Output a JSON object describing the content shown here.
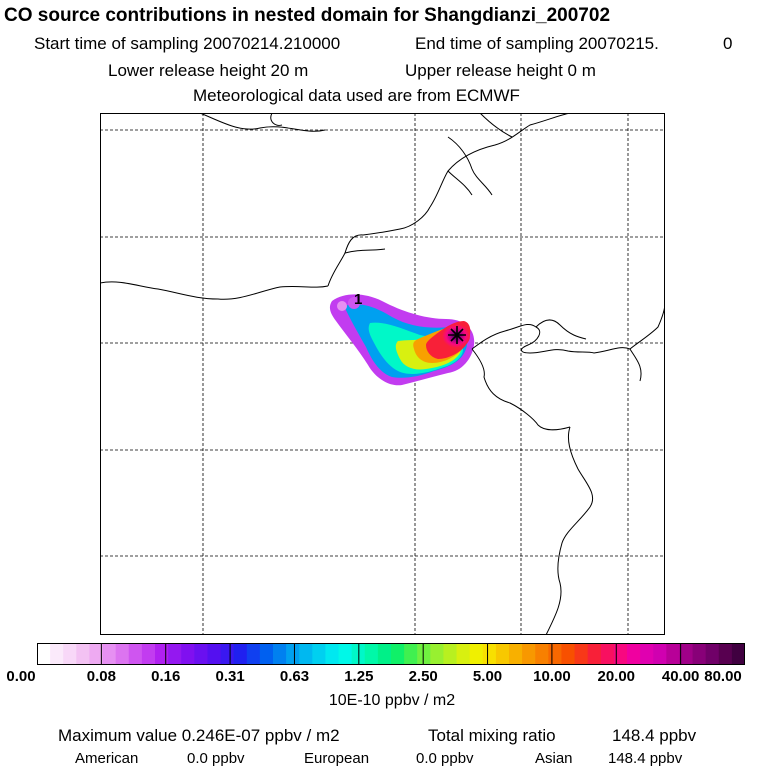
{
  "title": "CO  source contributions in nested domain for Shangdianzi_200702",
  "header": {
    "start_label": "Start time of sampling 20070214.210000",
    "end_label": "End time of sampling 20070215.",
    "end_hour": "0",
    "lower_release": "Lower release height   20 m",
    "upper_release": "Upper release height    0 m",
    "met_data": "Meteorological data used are from ECMWF"
  },
  "map": {
    "site_label": "1",
    "site_marker": "cross-marker"
  },
  "legend": {
    "tick_labels": [
      "0.00",
      "0.08",
      "0.16",
      "0.31",
      "0.63",
      "1.25",
      "2.50",
      "5.00",
      "10.00",
      "20.00",
      "40.00",
      "80.00"
    ],
    "units": "10E-10 ppbv / m2",
    "colors": [
      "#ffffff",
      "#fbeafb",
      "#f8d8f8",
      "#f3c2f3",
      "#eeaaf2",
      "#e690f2",
      "#dc74f0",
      "#cf55f0",
      "#c23cf0",
      "#b020f0",
      "#9418f0",
      "#8010f0",
      "#6a10f0",
      "#5410f0",
      "#3a18f0",
      "#2020f0",
      "#1040f0",
      "#0060f0",
      "#0080f0",
      "#00a0f0",
      "#00b8f0",
      "#00d0f0",
      "#00e8f0",
      "#00f8e8",
      "#00f8c8",
      "#00f8a8",
      "#00f088",
      "#10f068",
      "#40f050",
      "#70f040",
      "#98f030",
      "#b8f020",
      "#d8f010",
      "#f0f000",
      "#f8e000",
      "#f8c800",
      "#f8b000",
      "#f89800",
      "#f88000",
      "#f86800",
      "#f85000",
      "#f83818",
      "#f82038",
      "#f81060",
      "#f80880",
      "#f000a0",
      "#e000b0",
      "#d000b0",
      "#b80098",
      "#a00088",
      "#880078",
      "#700068",
      "#580050",
      "#400040"
    ]
  },
  "footer": {
    "max_value": "Maximum value  0.246E-07 ppbv / m2",
    "total_mixing": "Total mixing ratio",
    "total_value": "148.4 ppbv",
    "american_label": "American",
    "american_value": "0.0 ppbv",
    "european_label": "European",
    "european_value": "0.0 ppbv",
    "asian_label": "Asian",
    "asian_value": "148.4 ppbv"
  }
}
